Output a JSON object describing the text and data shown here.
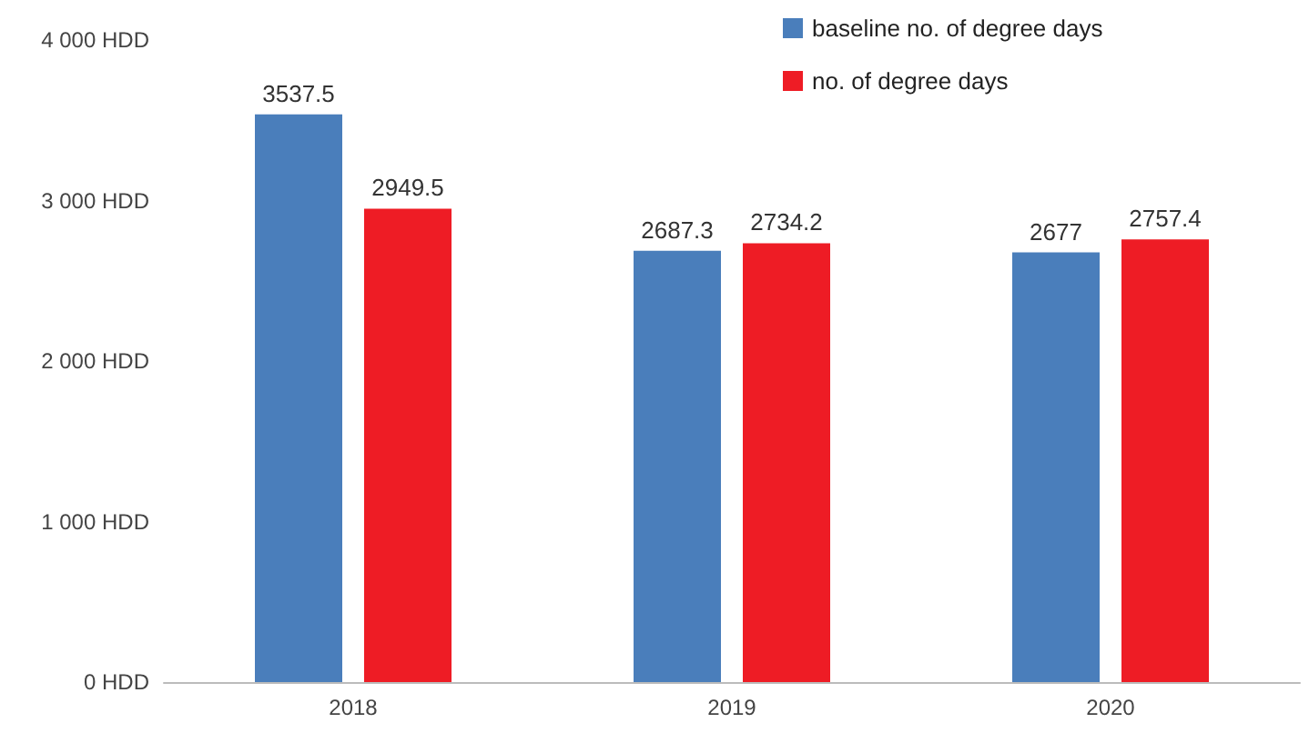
{
  "chart_data": {
    "type": "bar",
    "categories": [
      "2018",
      "2019",
      "2020"
    ],
    "series": [
      {
        "name": "baseline no. of degree days",
        "color": "#4a7ebb",
        "values": [
          3537.5,
          2687.3,
          2677
        ]
      },
      {
        "name": "no. of degree days",
        "color": "#ee1c25",
        "values": [
          2949.5,
          2734.2,
          2757.4
        ]
      }
    ],
    "ylim": [
      0,
      4000
    ],
    "yticks": [
      {
        "value": 0,
        "label": "0 HDD"
      },
      {
        "value": 1000,
        "label": "1 000 HDD"
      },
      {
        "value": 2000,
        "label": "2 000 HDD"
      },
      {
        "value": 3000,
        "label": "3 000 HDD"
      },
      {
        "value": 4000,
        "label": "4 000 HDD"
      }
    ],
    "grid": false,
    "legend": "top right",
    "data_labels": true
  }
}
